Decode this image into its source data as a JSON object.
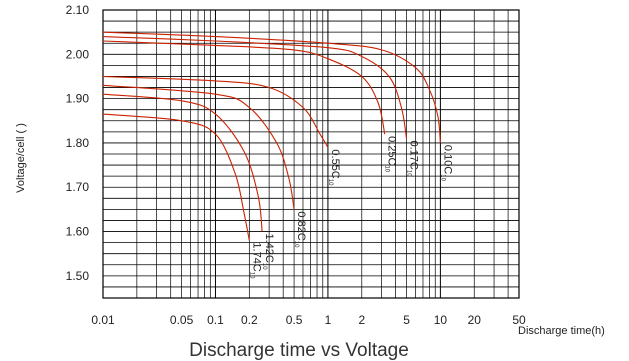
{
  "chart_data": {
    "type": "line",
    "title": "Discharge time vs Voltage",
    "xlabel": "Discharge time(h)",
    "ylabel": "Voltage/cell ( )",
    "xscale": "log",
    "xlim": [
      0.01,
      50
    ],
    "ylim": [
      1.45,
      2.1
    ],
    "grid": true,
    "x_ticks": [
      "0.01",
      "0.05",
      "0.1",
      "0.2",
      "0.5",
      "1",
      "2",
      "5",
      "10",
      "20",
      "50"
    ],
    "y_ticks": [
      "2.10",
      "2.00",
      "1.90",
      "1.80",
      "1.70",
      "1.60",
      "1.50"
    ],
    "line_color": "#cc2200",
    "series": [
      {
        "name": "0.10C",
        "subscript": "10",
        "x": [
          0.01,
          0.1,
          1,
          3,
          6,
          8,
          9.5,
          10
        ],
        "y": [
          2.05,
          2.04,
          2.025,
          2.01,
          1.97,
          1.92,
          1.86,
          1.8
        ]
      },
      {
        "name": "0.17C",
        "subscript": "10",
        "x": [
          0.01,
          0.1,
          1,
          2,
          3.5,
          4.5,
          5
        ],
        "y": [
          2.04,
          2.03,
          2.015,
          1.995,
          1.95,
          1.88,
          1.81
        ]
      },
      {
        "name": "0.25C",
        "subscript": "10",
        "x": [
          0.01,
          0.1,
          0.5,
          1,
          2,
          2.8,
          3.2
        ],
        "y": [
          2.03,
          2.02,
          2.01,
          1.99,
          1.95,
          1.89,
          1.82
        ]
      },
      {
        "name": "0.55C",
        "subscript": "10",
        "x": [
          0.01,
          0.1,
          0.3,
          0.6,
          0.85,
          1.0
        ],
        "y": [
          1.95,
          1.94,
          1.925,
          1.88,
          1.82,
          1.79
        ]
      },
      {
        "name": "0.82C",
        "subscript": "10",
        "x": [
          0.01,
          0.1,
          0.2,
          0.35,
          0.45,
          0.5
        ],
        "y": [
          1.93,
          1.91,
          1.88,
          1.8,
          1.72,
          1.65
        ]
      },
      {
        "name": "1.42C",
        "subscript": "10",
        "x": [
          0.01,
          0.05,
          0.1,
          0.18,
          0.24,
          0.26
        ],
        "y": [
          1.91,
          1.895,
          1.865,
          1.78,
          1.68,
          1.6
        ]
      },
      {
        "name": "1.74C",
        "subscript": "10",
        "x": [
          0.01,
          0.05,
          0.1,
          0.15,
          0.18,
          0.2
        ],
        "y": [
          1.865,
          1.85,
          1.82,
          1.73,
          1.64,
          1.58
        ]
      }
    ]
  }
}
